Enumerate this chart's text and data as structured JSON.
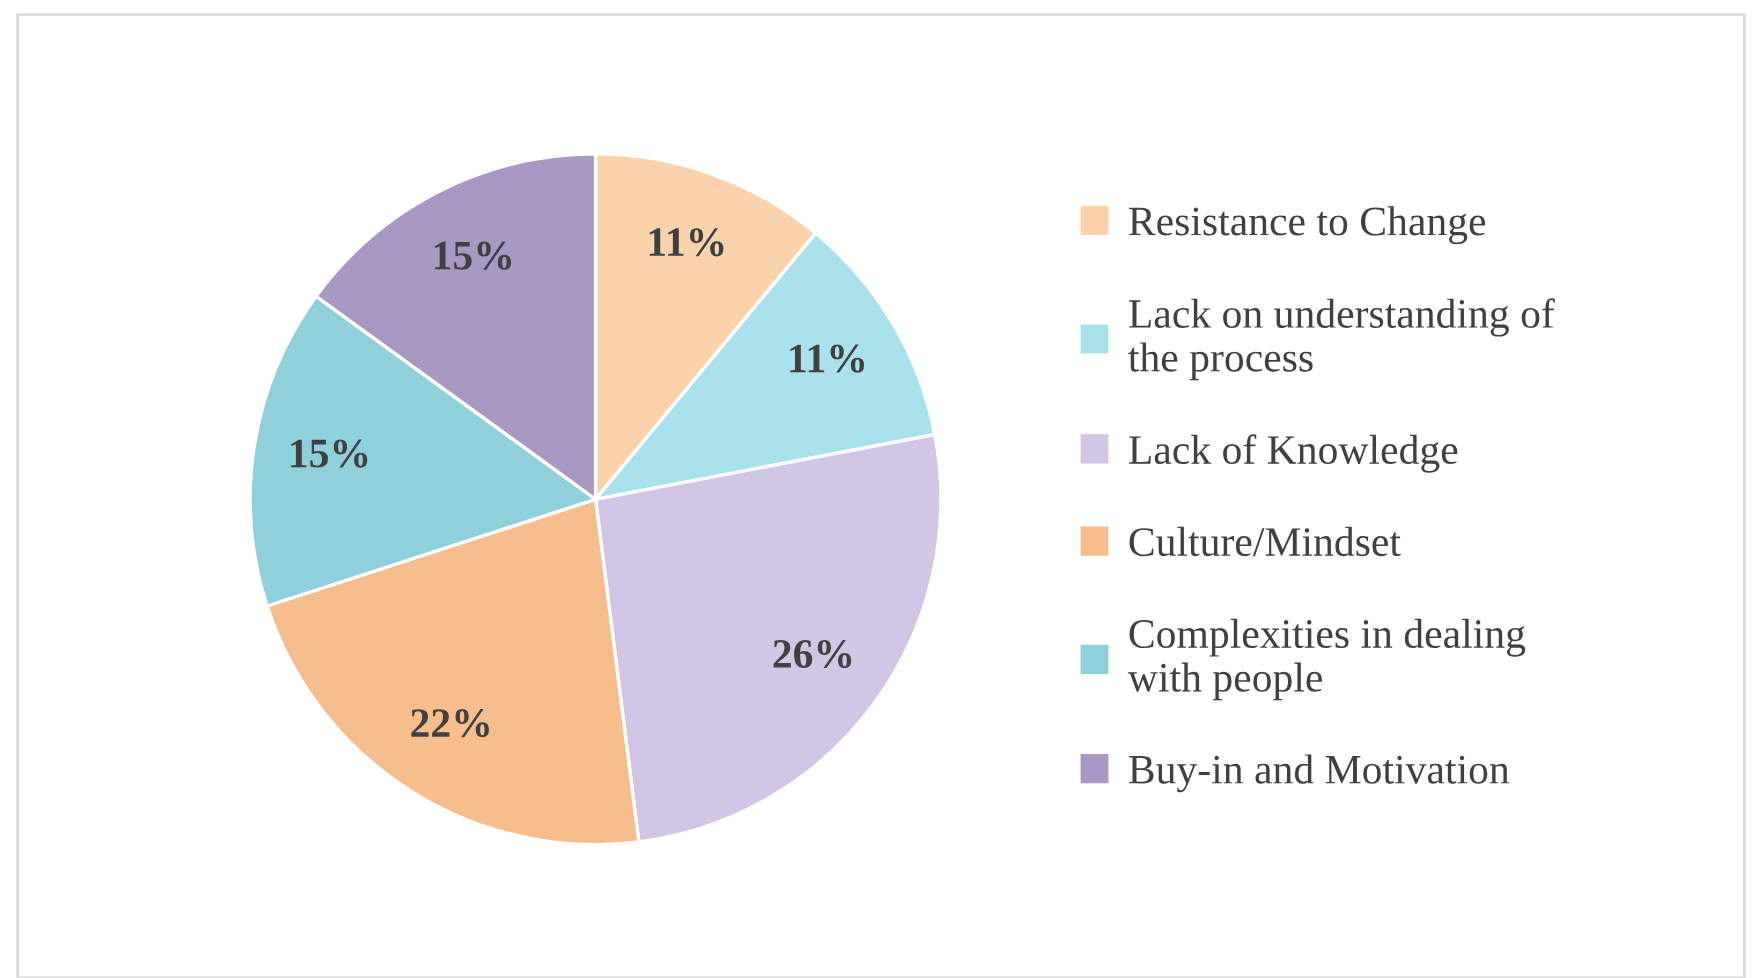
{
  "chart_data": {
    "type": "pie",
    "categories": [
      "Resistance to Change",
      "Lack on understanding of the process",
      "Lack of Knowledge",
      "Culture/Mindset",
      "Complexities in dealing with people",
      "Buy-in and Motivation"
    ],
    "values": [
      11,
      11,
      26,
      22,
      15,
      15
    ],
    "colors": [
      "#fad3ad",
      "#a9e2ec",
      "#d2c6e6",
      "#f5be8c",
      "#8fd0da",
      "#a799c4"
    ],
    "value_labels": [
      "11%",
      "11%",
      "26%",
      "22%",
      "15%",
      "15%"
    ],
    "legend": "right"
  }
}
